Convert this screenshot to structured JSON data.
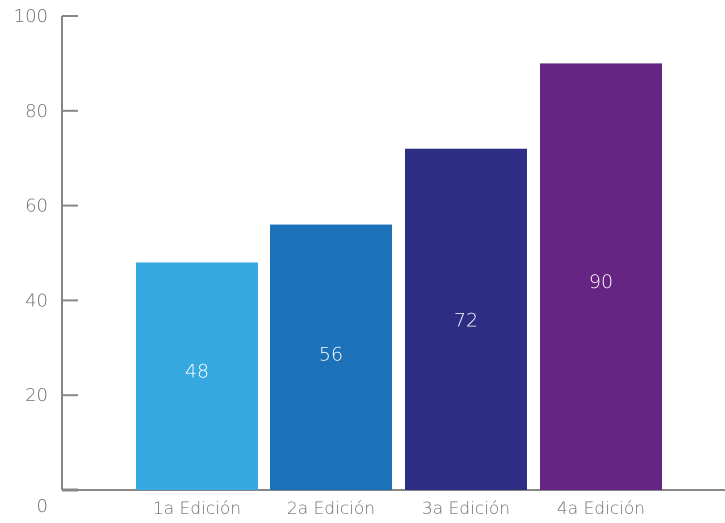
{
  "chart_data": {
    "type": "bar",
    "title": "",
    "xlabel": "",
    "ylabel": "",
    "categories": [
      "1a Edición",
      "2a Edición",
      "3a Edición",
      "4a Edición"
    ],
    "values": [
      48,
      56,
      72,
      90
    ],
    "data_labels": [
      "48",
      "56",
      "72",
      "90"
    ],
    "colors": [
      "#36a9e1",
      "#1d71b8",
      "#2d2e83",
      "#662483"
    ],
    "axis_color": "#878787",
    "ylim": [
      0,
      100
    ],
    "yticks": [
      0,
      20,
      40,
      60,
      80,
      100
    ],
    "ytick_labels": [
      "0",
      "20",
      "40",
      "60",
      "80",
      "100"
    ],
    "grid": false,
    "legend": "none"
  }
}
